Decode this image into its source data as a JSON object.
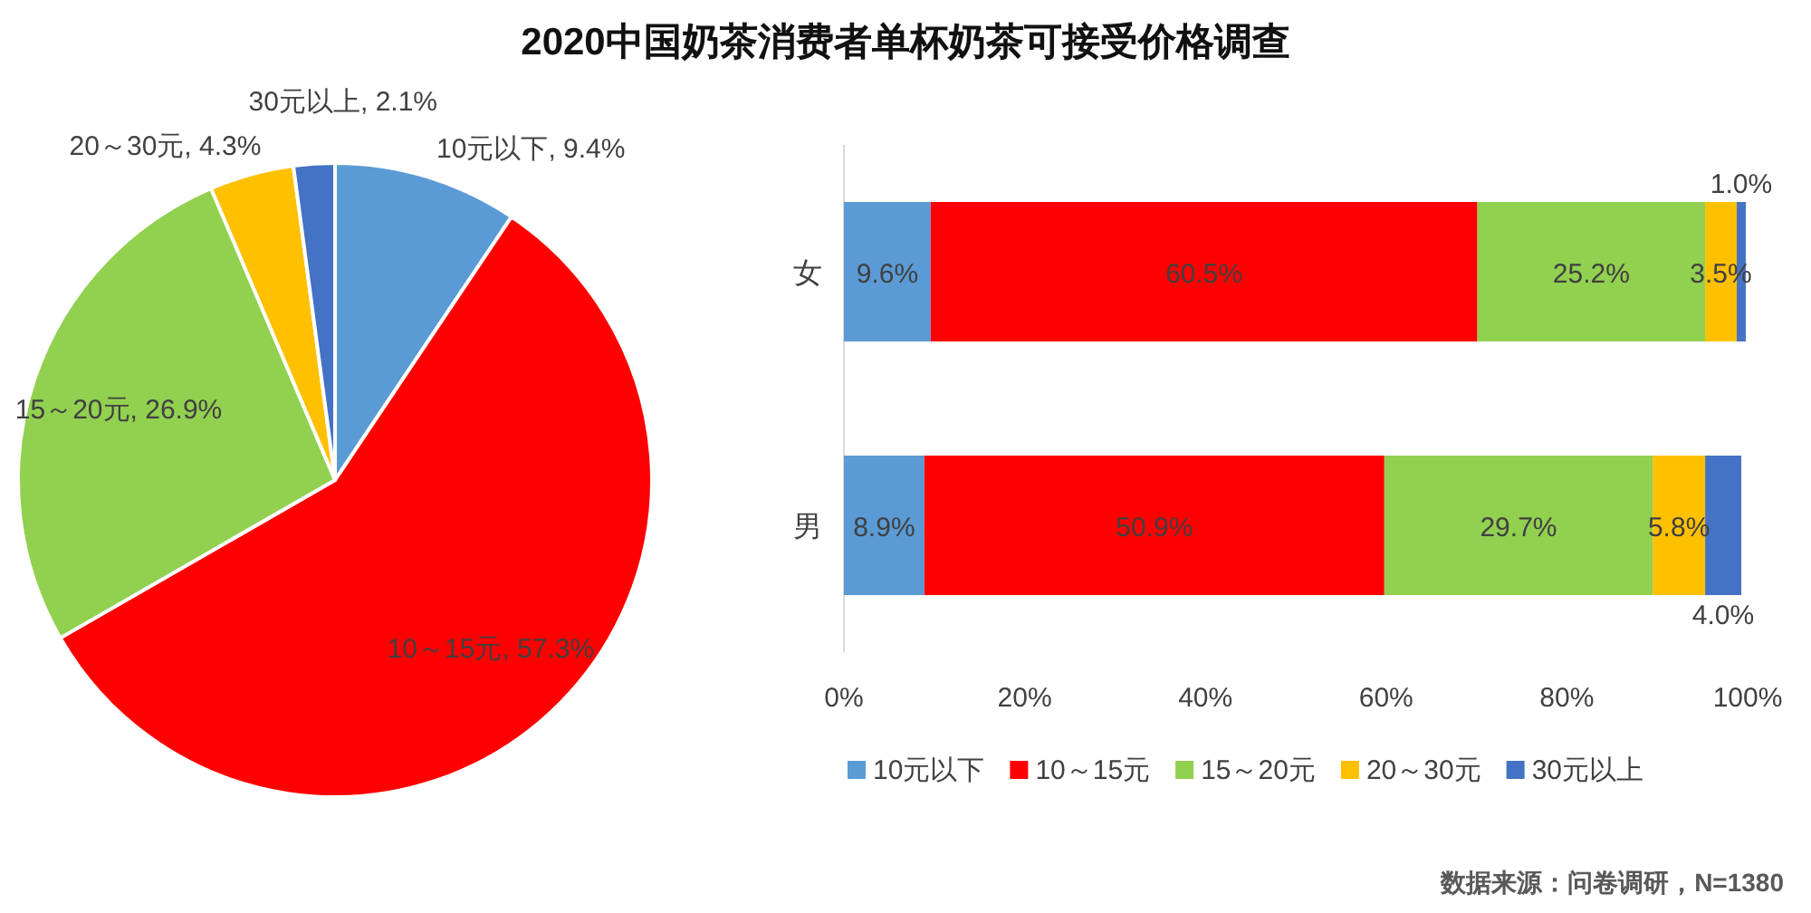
{
  "chart_data": [
    {
      "type": "pie",
      "title": "2020中国奶茶消费者单杯奶茶可接受价格调查",
      "categories": [
        "10元以下",
        "10～15元",
        "15～20元",
        "20～30元",
        "30元以上"
      ],
      "values": [
        9.4,
        57.3,
        26.9,
        4.3,
        2.1
      ],
      "colors": [
        "#5b9bd5",
        "#ff0000",
        "#92d050",
        "#ffc000",
        "#4472c4"
      ],
      "value_labels": [
        "9.4%",
        "57.3%",
        "26.9%",
        "4.3%",
        "2.1%"
      ]
    },
    {
      "type": "bar",
      "orientation": "horizontal",
      "stacked": true,
      "categories": [
        "女",
        "男"
      ],
      "series": [
        {
          "name": "10元以下",
          "color": "#5b9bd5",
          "values": [
            9.6,
            8.9
          ],
          "value_labels": [
            "9.6%",
            "8.9%"
          ]
        },
        {
          "name": "10～15元",
          "color": "#ff0000",
          "values": [
            60.5,
            50.9
          ],
          "value_labels": [
            "60.5%",
            "50.9%"
          ]
        },
        {
          "name": "15～20元",
          "color": "#92d050",
          "values": [
            25.2,
            29.7
          ],
          "value_labels": [
            "25.2%",
            "29.7%"
          ]
        },
        {
          "name": "20～30元",
          "color": "#ffc000",
          "values": [
            3.5,
            5.8
          ],
          "value_labels": [
            "3.5%",
            "5.8%"
          ]
        },
        {
          "name": "30元以上",
          "color": "#4472c4",
          "values": [
            1.0,
            4.0
          ],
          "value_labels": [
            "1.0%",
            "4.0%"
          ]
        }
      ],
      "xlim": [
        0,
        100
      ],
      "xticks": [
        {
          "value": 0,
          "label": "0%"
        },
        {
          "value": 20,
          "label": "20%"
        },
        {
          "value": 40,
          "label": "40%"
        },
        {
          "value": 60,
          "label": "60%"
        },
        {
          "value": 80,
          "label": "80%"
        },
        {
          "value": 100,
          "label": "100%"
        }
      ],
      "legend": "bottom",
      "annotations": [
        "数据来源：问卷调研，N=1380"
      ]
    }
  ]
}
